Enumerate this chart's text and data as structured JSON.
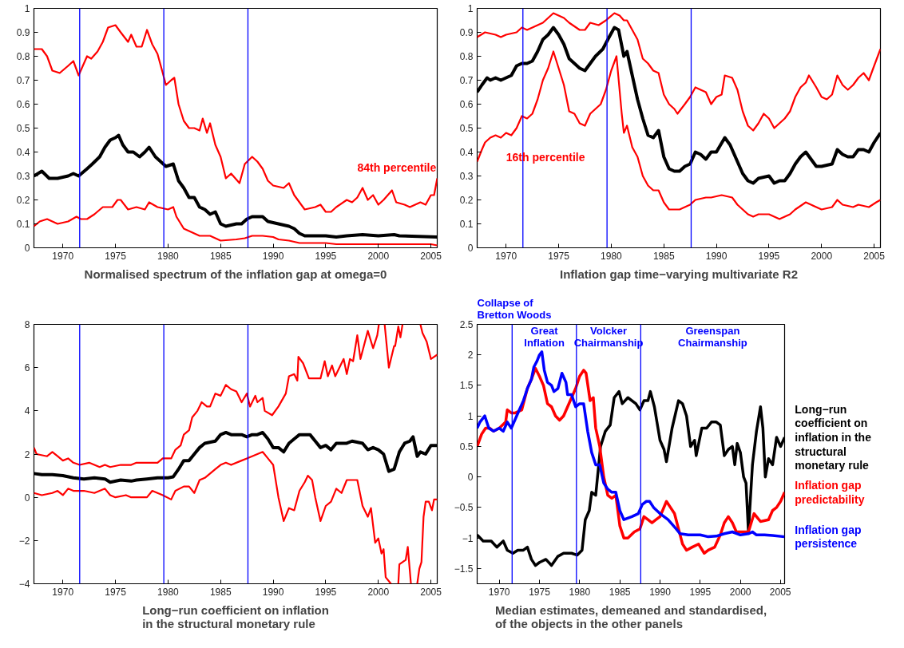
{
  "chart_data": [
    {
      "type": "line",
      "title": "Normalised spectrum of the inflation gap at omega=0",
      "xlim": [
        1967.25,
        2005.6
      ],
      "xticks": [
        1970,
        1975,
        1980,
        1985,
        1990,
        1995,
        2000,
        2005
      ],
      "ylim": [
        0,
        1
      ],
      "yticks": [
        0,
        0.1,
        0.2,
        0.3,
        0.4,
        0.5,
        0.6,
        0.7,
        0.8,
        0.9,
        1
      ],
      "series": [
        {
          "name": "84th percentile",
          "color": "#ff0000",
          "x": [
            1967.25,
            1968,
            1968.5,
            1969,
            1969.7,
            1970.5,
            1971,
            1971.5,
            1972.3,
            1972.7,
            1973.3,
            1973.8,
            1974.3,
            1975,
            1975.5,
            1976.2,
            1976.5,
            1977,
            1977.5,
            1978,
            1978.5,
            1979,
            1979.5,
            1979.8,
            1980.3,
            1980.6,
            1981,
            1981.5,
            1982,
            1982.5,
            1983,
            1983.3,
            1983.7,
            1984,
            1984.5,
            1985,
            1985.5,
            1986,
            1986.8,
            1987.3,
            1988,
            1988.5,
            1989,
            1989.5,
            1990,
            1991,
            1991.5,
            1992,
            1992.5,
            1993,
            1994,
            1994.5,
            1995,
            1995.5,
            1996,
            1997,
            1997.5,
            1998,
            1998.5,
            1999,
            1999.5,
            2000,
            2000.5,
            2001.3,
            2001.7,
            2002.5,
            2003,
            2004,
            2004.5,
            2005,
            2005.3,
            2005.6
          ],
          "values": [
            0.83,
            0.83,
            0.8,
            0.74,
            0.73,
            0.76,
            0.78,
            0.72,
            0.8,
            0.79,
            0.82,
            0.86,
            0.92,
            0.93,
            0.9,
            0.86,
            0.89,
            0.84,
            0.84,
            0.91,
            0.85,
            0.81,
            0.73,
            0.68,
            0.7,
            0.71,
            0.6,
            0.53,
            0.5,
            0.5,
            0.49,
            0.54,
            0.48,
            0.52,
            0.43,
            0.38,
            0.29,
            0.31,
            0.27,
            0.35,
            0.38,
            0.36,
            0.33,
            0.28,
            0.26,
            0.25,
            0.27,
            0.22,
            0.19,
            0.16,
            0.17,
            0.18,
            0.15,
            0.15,
            0.17,
            0.2,
            0.19,
            0.21,
            0.25,
            0.2,
            0.22,
            0.18,
            0.2,
            0.24,
            0.19,
            0.18,
            0.17,
            0.19,
            0.18,
            0.22,
            0.22,
            0.29
          ]
        },
        {
          "color": "#000000",
          "x": [
            1967.25,
            1968,
            1968.7,
            1969.5,
            1970.5,
            1971,
            1971.5,
            1972.3,
            1972.8,
            1973.5,
            1974,
            1974.5,
            1975,
            1975.3,
            1975.7,
            1976.2,
            1976.7,
            1977.3,
            1977.8,
            1978.2,
            1978.8,
            1979.3,
            1979.8,
            1980.5,
            1981,
            1981.5,
            1982,
            1982.5,
            1983,
            1983.5,
            1984,
            1984.5,
            1985,
            1985.5,
            1986.5,
            1987,
            1987.5,
            1988,
            1989,
            1989.5,
            1990.5,
            1991.5,
            1992,
            1992.5,
            1993,
            1995,
            1996,
            1997,
            1998.5,
            2000,
            2001.5,
            2002,
            2005.6
          ],
          "values": [
            0.3,
            0.32,
            0.29,
            0.29,
            0.3,
            0.31,
            0.3,
            0.33,
            0.35,
            0.38,
            0.42,
            0.45,
            0.46,
            0.47,
            0.43,
            0.4,
            0.4,
            0.38,
            0.4,
            0.42,
            0.38,
            0.36,
            0.34,
            0.35,
            0.28,
            0.25,
            0.21,
            0.21,
            0.17,
            0.16,
            0.14,
            0.15,
            0.1,
            0.09,
            0.1,
            0.1,
            0.12,
            0.13,
            0.13,
            0.11,
            0.1,
            0.09,
            0.08,
            0.06,
            0.05,
            0.05,
            0.045,
            0.05,
            0.055,
            0.05,
            0.055,
            0.05,
            0.045
          ]
        },
        {
          "color": "#ff0000",
          "x": [
            1967.25,
            1967.8,
            1968.5,
            1969.5,
            1970.5,
            1971.3,
            1971.7,
            1972.3,
            1973,
            1973.8,
            1974.7,
            1975.2,
            1975.5,
            1976.2,
            1977,
            1977.8,
            1978.2,
            1979,
            1980,
            1980.5,
            1980.8,
            1981.5,
            1982,
            1983,
            1984,
            1985,
            1986.5,
            1987.3,
            1988,
            1989,
            1990,
            1990.5,
            1991.5,
            1992.5,
            1995,
            1996,
            2000,
            2005,
            2005.6
          ],
          "values": [
            0.09,
            0.11,
            0.12,
            0.1,
            0.11,
            0.13,
            0.12,
            0.12,
            0.14,
            0.17,
            0.17,
            0.2,
            0.2,
            0.16,
            0.17,
            0.16,
            0.19,
            0.17,
            0.16,
            0.17,
            0.13,
            0.08,
            0.07,
            0.05,
            0.05,
            0.03,
            0.035,
            0.04,
            0.05,
            0.05,
            0.045,
            0.035,
            0.03,
            0.02,
            0.02,
            0.015,
            0.015,
            0.015,
            0.01
          ]
        }
      ],
      "ref_lines": [
        {
          "axis": "x",
          "value": 1971.6,
          "color": "#0000ff"
        },
        {
          "axis": "x",
          "value": 1979.6,
          "color": "#0000ff"
        },
        {
          "axis": "x",
          "value": 1987.6,
          "color": "#0000ff"
        }
      ],
      "legend": false
    },
    {
      "type": "line",
      "title": "Inflation gap time−varying multivariate R2",
      "xlim": [
        1967.25,
        2005.6
      ],
      "xticks": [
        1970,
        1975,
        1980,
        1985,
        1990,
        1995,
        2000,
        2005
      ],
      "ylim": [
        0,
        1
      ],
      "yticks": [
        0,
        0.1,
        0.2,
        0.3,
        0.4,
        0.5,
        0.6,
        0.7,
        0.8,
        0.9,
        1
      ],
      "series": [
        {
          "color": "#ff0000",
          "x": [
            1967.25,
            1968,
            1969,
            1969.5,
            1970,
            1971,
            1971.5,
            1972,
            1972.5,
            1973.5,
            1974.5,
            1975.5,
            1976,
            1977,
            1977.5,
            1978,
            1978.8,
            1979.5,
            1980.3,
            1980.8,
            1981.2,
            1981.5,
            1982,
            1982.5,
            1983,
            1983.5,
            1984,
            1984.5,
            1985,
            1985.5,
            1986,
            1986.3,
            1987,
            1987.5,
            1988,
            1988.5,
            1989,
            1989.5,
            1990,
            1990.5,
            1990.8,
            1991.5,
            1992,
            1992.5,
            1993,
            1993.5,
            1994,
            1994.5,
            1995,
            1995.5,
            1996,
            1996.5,
            1997,
            1997.5,
            1998,
            1998.5,
            1998.8,
            1999.5,
            2000,
            2000.5,
            2001,
            2001.5,
            2002,
            2002.5,
            2003,
            2003.5,
            2004,
            2004.5,
            2005,
            2005.6
          ],
          "values": [
            0.88,
            0.9,
            0.89,
            0.88,
            0.89,
            0.9,
            0.92,
            0.91,
            0.92,
            0.94,
            0.98,
            0.96,
            0.94,
            0.91,
            0.91,
            0.94,
            0.93,
            0.95,
            0.98,
            0.97,
            0.95,
            0.95,
            0.91,
            0.87,
            0.79,
            0.77,
            0.74,
            0.73,
            0.64,
            0.6,
            0.58,
            0.56,
            0.6,
            0.63,
            0.67,
            0.66,
            0.65,
            0.6,
            0.63,
            0.64,
            0.72,
            0.71,
            0.66,
            0.57,
            0.51,
            0.49,
            0.52,
            0.56,
            0.54,
            0.5,
            0.52,
            0.54,
            0.57,
            0.63,
            0.67,
            0.69,
            0.72,
            0.67,
            0.63,
            0.62,
            0.64,
            0.72,
            0.68,
            0.66,
            0.68,
            0.71,
            0.73,
            0.7,
            0.76,
            0.83
          ]
        },
        {
          "color": "#000000",
          "x": [
            1967.25,
            1967.7,
            1968.2,
            1968.5,
            1969,
            1969.5,
            1970.5,
            1971,
            1971.5,
            1972,
            1972.5,
            1973,
            1973.5,
            1974,
            1974.5,
            1975,
            1975.5,
            1976,
            1976.5,
            1977,
            1977.5,
            1978,
            1978.5,
            1979.2,
            1979.8,
            1980.3,
            1980.7,
            1981.2,
            1981.5,
            1982,
            1982.5,
            1983,
            1983.5,
            1984,
            1984.5,
            1985,
            1985.5,
            1986,
            1986.5,
            1987,
            1987.5,
            1988,
            1988.5,
            1989,
            1989.5,
            1990,
            1990.8,
            1991.3,
            1992,
            1992.5,
            1993,
            1993.5,
            1994,
            1995,
            1995.5,
            1996,
            1996.5,
            1997,
            1997.5,
            1998,
            1998.5,
            1999,
            1999.5,
            2000,
            2001,
            2001.5,
            2002,
            2002.5,
            2003,
            2003.5,
            2004,
            2004.5,
            2005,
            2005.6
          ],
          "values": [
            0.65,
            0.68,
            0.71,
            0.7,
            0.71,
            0.7,
            0.72,
            0.76,
            0.77,
            0.77,
            0.78,
            0.82,
            0.87,
            0.89,
            0.92,
            0.89,
            0.85,
            0.79,
            0.77,
            0.75,
            0.74,
            0.77,
            0.8,
            0.83,
            0.88,
            0.92,
            0.91,
            0.8,
            0.82,
            0.72,
            0.62,
            0.54,
            0.47,
            0.46,
            0.49,
            0.38,
            0.33,
            0.32,
            0.32,
            0.34,
            0.35,
            0.4,
            0.39,
            0.37,
            0.4,
            0.4,
            0.46,
            0.43,
            0.36,
            0.31,
            0.28,
            0.27,
            0.29,
            0.3,
            0.27,
            0.28,
            0.28,
            0.31,
            0.35,
            0.38,
            0.4,
            0.37,
            0.34,
            0.34,
            0.35,
            0.41,
            0.39,
            0.38,
            0.38,
            0.41,
            0.41,
            0.4,
            0.44,
            0.48
          ]
        },
        {
          "name": "16th percentile",
          "color": "#ff0000",
          "x": [
            1967.25,
            1967.7,
            1968,
            1968.5,
            1969,
            1969.5,
            1970,
            1970.5,
            1971,
            1971.5,
            1972,
            1972.5,
            1973,
            1973.5,
            1974,
            1974.5,
            1975,
            1975.5,
            1976,
            1976.5,
            1977,
            1977.5,
            1978,
            1978.5,
            1979,
            1979.5,
            1980,
            1980.5,
            1981,
            1981.2,
            1981.5,
            1982,
            1982.5,
            1983,
            1983.5,
            1984,
            1984.5,
            1985,
            1985.5,
            1986.5,
            1987.5,
            1988,
            1989,
            1989.5,
            1990.5,
            1991.5,
            1992,
            1993,
            1993.5,
            1994,
            1995,
            1996,
            1997,
            1997.5,
            1998.5,
            1999,
            2000,
            2001,
            2001.5,
            2002,
            2003,
            2003.5,
            2004.5,
            2005.2,
            2005.6
          ],
          "values": [
            0.36,
            0.41,
            0.44,
            0.46,
            0.47,
            0.46,
            0.48,
            0.47,
            0.5,
            0.55,
            0.54,
            0.56,
            0.62,
            0.7,
            0.75,
            0.82,
            0.75,
            0.68,
            0.57,
            0.56,
            0.52,
            0.51,
            0.56,
            0.58,
            0.6,
            0.66,
            0.74,
            0.8,
            0.56,
            0.48,
            0.51,
            0.42,
            0.38,
            0.3,
            0.26,
            0.24,
            0.24,
            0.19,
            0.16,
            0.16,
            0.18,
            0.2,
            0.21,
            0.21,
            0.22,
            0.21,
            0.18,
            0.14,
            0.13,
            0.14,
            0.14,
            0.12,
            0.14,
            0.16,
            0.19,
            0.18,
            0.16,
            0.17,
            0.2,
            0.18,
            0.17,
            0.18,
            0.17,
            0.19,
            0.2
          ]
        }
      ],
      "ref_lines": [
        {
          "axis": "x",
          "value": 1971.6,
          "color": "#0000ff"
        },
        {
          "axis": "x",
          "value": 1979.6,
          "color": "#0000ff"
        },
        {
          "axis": "x",
          "value": 1987.6,
          "color": "#0000ff"
        }
      ],
      "legend": false
    },
    {
      "type": "line",
      "title": "Long−run coefficient on inflation\nin the structural monetary rule",
      "xlim": [
        1967.25,
        2005.6
      ],
      "xticks": [
        1970,
        1975,
        1980,
        1985,
        1990,
        1995,
        2000,
        2005
      ],
      "ylim": [
        -4,
        8
      ],
      "yticks": [
        {
          "value": -4,
          "label": "−4"
        },
        {
          "value": -2,
          "label": "−2"
        },
        0,
        2,
        4,
        6,
        8
      ],
      "series": [
        {
          "color": "#ff0000",
          "x": [
            1967.25,
            1967.5,
            1968.5,
            1969,
            1969.5,
            1970,
            1970.5,
            1971,
            1971.6,
            1972.5,
            1973.5,
            1974,
            1974.5,
            1975.5,
            1976.5,
            1977,
            1978,
            1979,
            1979.5,
            1980.3,
            1980.7,
            1981.2,
            1981.5,
            1982,
            1982.3,
            1982.8,
            1983.2,
            1983.7,
            1984,
            1984.5,
            1985,
            1985.5,
            1986,
            1986.5,
            1987,
            1987.5,
            1987.8,
            1988.3,
            1988.5,
            1989,
            1989.2,
            1989.9,
            1990.5,
            1991.2,
            1991.5,
            1992,
            1992.3,
            1992.4,
            1992.85,
            1993.4,
            1994.5,
            1994.9,
            1995.2,
            1995.6,
            1995.9,
            1996.7,
            1997,
            1997.3,
            1997.6,
            1998,
            1998.3,
            1999,
            1999.5,
            1999.9,
            2000.05,
            2000.3,
            2000.6,
            2001,
            2001.5,
            2001.6,
            2001.9,
            2002.1,
            2002.3,
            2002.6,
            2003.5,
            2004,
            2004.2,
            2004.6,
            2005,
            2005.6
          ],
          "values": [
            2.3,
            2.0,
            1.9,
            2.1,
            1.9,
            1.7,
            1.8,
            1.6,
            1.5,
            1.6,
            1.4,
            1.5,
            1.4,
            1.5,
            1.5,
            1.6,
            1.6,
            1.6,
            1.8,
            1.8,
            2.2,
            2.4,
            2.9,
            3.1,
            3.7,
            4.0,
            4.4,
            4.2,
            4.2,
            4.8,
            4.7,
            5.2,
            5.0,
            4.9,
            4.4,
            4.8,
            4.2,
            4.7,
            4.4,
            4.6,
            4.0,
            3.8,
            4.2,
            4.8,
            5.6,
            5.7,
            5.4,
            6.5,
            6.2,
            5.5,
            5.5,
            6.3,
            5.6,
            6.1,
            5.6,
            6.4,
            5.7,
            6.4,
            6.3,
            7.5,
            6.4,
            7.7,
            6.9,
            7.5,
            8.0,
            null,
            8.0,
            6.0,
            7.0,
            7.0,
            7.9,
            7.4,
            8.0,
            null,
            null,
            8.0,
            7.6,
            7.2,
            6.4,
            6.6
          ]
        },
        {
          "color": "#000000",
          "x": [
            1967.25,
            1968,
            1969,
            1970,
            1971,
            1972,
            1973,
            1974,
            1974.5,
            1975.5,
            1976.5,
            1977,
            1978,
            1979,
            1980,
            1980.5,
            1981,
            1981.5,
            1982,
            1982.5,
            1983,
            1983.5,
            1984.5,
            1985,
            1985.5,
            1986,
            1987,
            1987.5,
            1988,
            1988.5,
            1989,
            1989.5,
            1990,
            1990.5,
            1991,
            1991.5,
            1992,
            1992.5,
            1993.5,
            1994,
            1994.5,
            1995,
            1995.5,
            1996,
            1997,
            1997.5,
            1998.5,
            1999,
            1999.5,
            2000,
            2000.5,
            2001,
            2001.5,
            2002,
            2002.5,
            2003,
            2003.3,
            2003.7,
            2004,
            2004.5,
            2005,
            2005.6
          ],
          "values": [
            1.1,
            1.05,
            1.05,
            1.0,
            0.9,
            0.85,
            0.9,
            0.85,
            0.7,
            0.8,
            0.75,
            0.8,
            0.85,
            0.9,
            0.9,
            0.95,
            1.3,
            1.7,
            1.7,
            2.0,
            2.3,
            2.5,
            2.6,
            2.9,
            3.0,
            2.9,
            2.9,
            2.8,
            2.9,
            2.9,
            3.0,
            2.7,
            2.3,
            2.3,
            2.1,
            2.5,
            2.7,
            2.9,
            2.9,
            2.6,
            2.3,
            2.4,
            2.2,
            2.5,
            2.5,
            2.6,
            2.5,
            2.2,
            2.3,
            2.2,
            2.0,
            1.2,
            1.3,
            2.1,
            2.5,
            2.6,
            2.8,
            1.9,
            2.1,
            2.0,
            2.4,
            2.4
          ]
        },
        {
          "color": "#ff0000",
          "x": [
            1967.25,
            1968,
            1969,
            1969.5,
            1970,
            1970.5,
            1971,
            1972,
            1973,
            1974,
            1974.5,
            1975,
            1976,
            1976.5,
            1977,
            1978,
            1978.5,
            1979,
            1979.5,
            1980.3,
            1980.7,
            1981.5,
            1982,
            1982.5,
            1983,
            1983.5,
            1984,
            1984.5,
            1985,
            1985.5,
            1986,
            1987,
            1987.5,
            1988,
            1989,
            1989.5,
            1990,
            1990.5,
            1991,
            1991.5,
            1992,
            1992.5,
            1993,
            1993.3,
            1993.7,
            1994,
            1994.5,
            1995,
            1995.5,
            1996,
            1996.5,
            1997,
            1998,
            1998.5,
            1999,
            1999.3,
            1999.7,
            2000,
            2000.3,
            2000.5,
            2000.7,
            2001.2,
            2001.5,
            2001.9,
            2002,
            2002.6,
            2002.8,
            2003.1,
            2003.4,
            2003.7,
            2003.9,
            2004.1,
            2004.3,
            2004.5,
            2004.8,
            2005.1,
            2005.3,
            2005.6
          ],
          "values": [
            0.2,
            0.1,
            0.2,
            0.3,
            0.1,
            0.4,
            0.3,
            0.3,
            0.2,
            0.4,
            0.1,
            0.0,
            0.1,
            0.0,
            0.0,
            0.0,
            0.3,
            0.2,
            0.1,
            -0.1,
            0.3,
            0.5,
            0.5,
            0.2,
            0.8,
            0.9,
            1.1,
            1.3,
            1.5,
            1.6,
            1.5,
            1.7,
            1.8,
            1.9,
            2.1,
            1.8,
            1.5,
            0.0,
            -1.1,
            -0.5,
            -0.6,
            0.3,
            0.7,
            1.0,
            0.8,
            0.0,
            -1.1,
            -0.4,
            -0.2,
            0.4,
            0.2,
            0.8,
            0.8,
            -0.4,
            -0.9,
            -0.5,
            -2.1,
            -1.9,
            -2.6,
            -2.4,
            -3.7,
            -4.0,
            null,
            -4.0,
            -3.1,
            -2.9,
            -2.3,
            -4.0,
            null,
            -4.0,
            -3.3,
            -3.0,
            -0.9,
            -0.2,
            -0.2,
            -0.6,
            -0.1,
            -0.1
          ]
        }
      ],
      "ref_lines": [
        {
          "axis": "x",
          "value": 1971.6,
          "color": "#0000ff"
        },
        {
          "axis": "x",
          "value": 1979.6,
          "color": "#0000ff"
        },
        {
          "axis": "x",
          "value": 1987.6,
          "color": "#0000ff"
        }
      ]
    },
    {
      "type": "line",
      "title": "Median estimates, demeaned and standardised,\nof the objects in the other panels",
      "xlim": [
        1967.25,
        2005.5
      ],
      "xticks": [
        1970,
        1975,
        1980,
        1985,
        1990,
        1995,
        2000,
        2005
      ],
      "ylim": [
        -1.75,
        2.5
      ],
      "yticks": [
        {
          "value": -1.5,
          "label": "−1.5"
        },
        {
          "value": -1,
          "label": "−1"
        },
        {
          "value": -0.5,
          "label": "−0.5"
        },
        0,
        0.5,
        1,
        1.5,
        2,
        2.5
      ],
      "series": [
        {
          "name": "Long−run coefficient on inflation in the structural monetary rule",
          "color": "#000000",
          "x": [
            1967.25,
            1968,
            1969,
            1969.7,
            1970.5,
            1971,
            1971.7,
            1972.3,
            1973,
            1973.5,
            1974,
            1974.5,
            1975,
            1975.8,
            1976.5,
            1977.3,
            1978,
            1979,
            1979.7,
            1980.3,
            1980.7,
            1981.2,
            1981.5,
            1982,
            1982.6,
            1983.2,
            1983.8,
            1984.3,
            1984.9,
            1985.3,
            1986,
            1987,
            1987.5,
            1988,
            1988.5,
            1988.8,
            1989.3,
            1990,
            1990.5,
            1990.8,
            1991.5,
            1992.3,
            1992.8,
            1993.3,
            1993.8,
            1994.3,
            1994.5,
            1995.2,
            1995.8,
            1996.4,
            1997,
            1997.5,
            1998,
            1998.5,
            1999,
            1999.3,
            1999.6,
            2000,
            2000.4,
            2000.7,
            2001,
            2001.5,
            2002,
            2002.5,
            2002.8,
            2003.1,
            2003.5,
            2004,
            2004.5,
            2005,
            2005.5
          ],
          "values": [
            -0.95,
            -1.05,
            -1.05,
            -1.15,
            -1.05,
            -1.2,
            -1.25,
            -1.2,
            -1.2,
            -1.15,
            -1.35,
            -1.45,
            -1.4,
            -1.35,
            -1.45,
            -1.3,
            -1.25,
            -1.25,
            -1.28,
            -1.2,
            -0.7,
            -0.55,
            -0.25,
            -0.3,
            0.5,
            0.75,
            0.85,
            1.3,
            1.4,
            1.2,
            1.3,
            1.2,
            1.1,
            1.25,
            1.25,
            1.4,
            1.15,
            0.6,
            0.45,
            0.25,
            0.8,
            1.25,
            1.2,
            1.0,
            0.5,
            0.6,
            0.35,
            0.8,
            0.8,
            0.9,
            0.9,
            0.85,
            0.35,
            0.45,
            0.5,
            0.2,
            0.55,
            0.4,
            0.0,
            -0.1,
            -0.9,
            0.2,
            0.75,
            1.15,
            0.8,
            0.0,
            0.3,
            0.2,
            0.65,
            0.5,
            0.65
          ]
        },
        {
          "name": "Inflation gap predictability",
          "color": "#ff0000",
          "x": [
            1967.25,
            1967.8,
            1968.3,
            1968.8,
            1969.3,
            1970,
            1970.8,
            1971,
            1971.5,
            1972,
            1972.8,
            1973.5,
            1974,
            1974.5,
            1975,
            1975.5,
            1976,
            1976.5,
            1977,
            1977.5,
            1978,
            1978.5,
            1979,
            1979.5,
            1980,
            1980.5,
            1980.8,
            1981.3,
            1981.7,
            1982,
            1982.5,
            1983,
            1983.5,
            1984,
            1984.5,
            1985,
            1985.5,
            1986,
            1986.8,
            1987.5,
            1988,
            1988.5,
            1989,
            1989.5,
            1990,
            1990.8,
            1991.3,
            1991.8,
            1992.3,
            1992.8,
            1993.3,
            1994,
            1994.8,
            1995.5,
            1996,
            1996.8,
            1997.5,
            1998,
            1998.5,
            1999,
            1999.5,
            2000,
            2001,
            2001.7,
            2002,
            2002.5,
            2003.5,
            2004,
            2004.5,
            2005,
            2005.5
          ],
          "values": [
            0.5,
            0.7,
            0.8,
            0.8,
            0.75,
            0.8,
            0.9,
            1.1,
            1.05,
            1.05,
            1.1,
            1.45,
            1.6,
            1.78,
            1.65,
            1.5,
            1.2,
            1.15,
            1.0,
            0.93,
            1.0,
            1.15,
            1.3,
            1.45,
            1.65,
            1.75,
            1.7,
            1.25,
            1.3,
            0.8,
            0.5,
            0.0,
            -0.3,
            -0.35,
            -0.3,
            -0.8,
            -1.0,
            -1.0,
            -0.9,
            -0.85,
            -0.65,
            -0.7,
            -0.75,
            -0.7,
            -0.65,
            -0.4,
            -0.5,
            -0.6,
            -0.85,
            -1.1,
            -1.2,
            -1.15,
            -1.1,
            -1.25,
            -1.2,
            -1.15,
            -0.95,
            -0.75,
            -0.65,
            -0.75,
            -0.9,
            -0.9,
            -0.9,
            -0.6,
            -0.65,
            -0.73,
            -0.7,
            -0.55,
            -0.5,
            -0.4,
            -0.25
          ]
        },
        {
          "name": "Inflation gap persistence",
          "color": "#0000ff",
          "x": [
            1967.25,
            1967.6,
            1968.2,
            1968.7,
            1969.3,
            1970,
            1970.5,
            1971,
            1971.5,
            1972,
            1972.5,
            1973,
            1973.5,
            1974,
            1974.3,
            1974.7,
            1975,
            1975.3,
            1975.6,
            1976,
            1976.5,
            1976.8,
            1977.3,
            1977.8,
            1978.3,
            1978.5,
            1979,
            1979.5,
            1980,
            1980.5,
            1981,
            1981.5,
            1982,
            1982.5,
            1983,
            1983.5,
            1984,
            1984.5,
            1985,
            1985.5,
            1986.5,
            1987.3,
            1987.8,
            1988.3,
            1988.7,
            1989.2,
            1990,
            1991,
            1992,
            1992.5,
            1993.5,
            1995,
            1996,
            1997,
            1998,
            1999,
            2000,
            2001,
            2001.5,
            2002,
            2003,
            2004,
            2005.5
          ],
          "values": [
            0.8,
            0.9,
            1.0,
            0.8,
            0.75,
            0.8,
            0.75,
            0.9,
            0.8,
            0.95,
            1.1,
            1.25,
            1.45,
            1.6,
            1.8,
            1.9,
            2.0,
            2.05,
            1.75,
            1.55,
            1.5,
            1.4,
            1.45,
            1.7,
            1.55,
            1.35,
            1.35,
            1.15,
            1.2,
            1.2,
            0.75,
            0.4,
            0.2,
            0.2,
            -0.1,
            -0.2,
            -0.25,
            -0.25,
            -0.55,
            -0.7,
            -0.65,
            -0.6,
            -0.45,
            -0.4,
            -0.4,
            -0.5,
            -0.6,
            -0.7,
            -0.85,
            -0.93,
            -0.95,
            -0.95,
            -0.98,
            -0.97,
            -0.93,
            -0.9,
            -0.95,
            -0.93,
            -0.9,
            -0.95,
            -0.95,
            -0.96,
            -0.98
          ]
        }
      ],
      "ref_lines": [
        {
          "axis": "x",
          "value": 1971.6,
          "color": "#0000ff",
          "label": "Collapse of\nBretton Woods"
        },
        {
          "axis": "x",
          "value": 1979.6,
          "color": "#0000ff"
        },
        {
          "axis": "x",
          "value": 1987.6,
          "color": "#0000ff"
        }
      ],
      "annotations": [
        "Great\nInflation",
        "Volcker\nChairmanship",
        "Greenspan\nChairmanship"
      ],
      "legend": "right"
    }
  ]
}
